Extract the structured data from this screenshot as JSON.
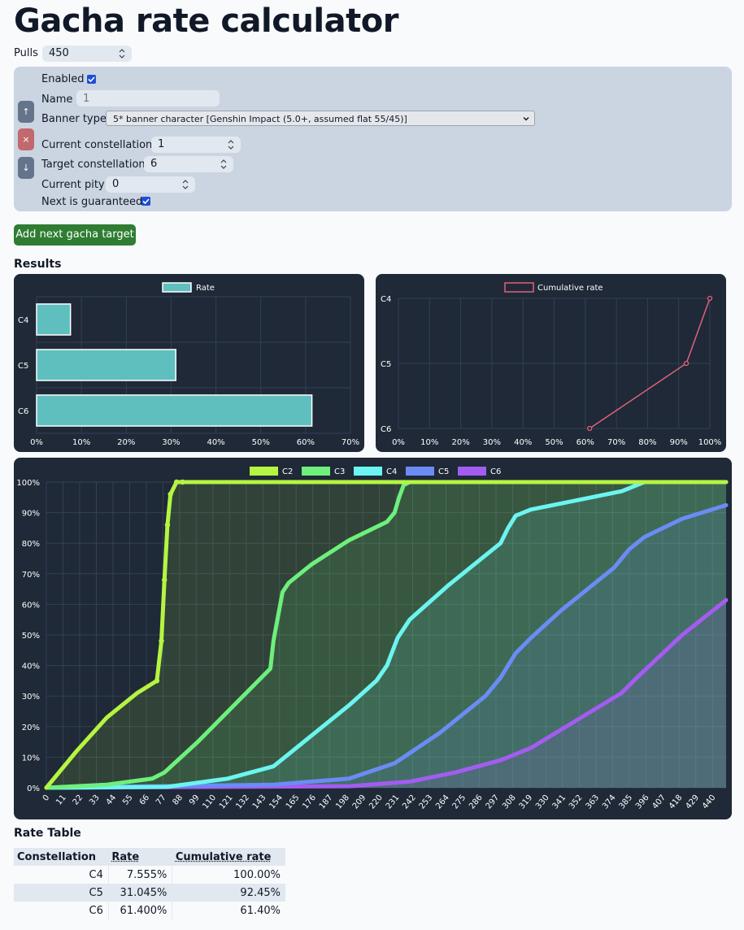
{
  "page_title": "Gacha rate calculator",
  "pulls": {
    "label": "Pulls",
    "value": "450"
  },
  "target": {
    "enabled_label": "Enabled",
    "enabled": true,
    "name_label": "Name",
    "name_placeholder": "1",
    "banner_type_label": "Banner type",
    "banner_type_value": "5* banner character [Genshin Impact (5.0+, assumed flat 55/45)]",
    "current_constellation_label": "Current constellation",
    "current_constellation_value": "1",
    "target_constellation_label": "Target constellation",
    "target_constellation_value": "6",
    "current_pity_label": "Current pity",
    "current_pity_value": "0",
    "guaranteed_label": "Next is guaranteed",
    "guaranteed": true,
    "move_up_icon": "arrow-up-icon",
    "remove_icon": "close-icon",
    "move_down_icon": "arrow-down-icon",
    "move_up_label": "↑",
    "remove_label": "×",
    "move_down_label": "↓"
  },
  "add_button_label": "Add next gacha target",
  "results_heading": "Results",
  "rate_table_heading": "Rate Table",
  "colors": {
    "rate_bar": "#5fbfbf",
    "cumulative_line": "#e0607e",
    "C2": "#b5f542",
    "C3": "#6ef07c",
    "C4": "#6cf5f0",
    "C5": "#6b8cf5",
    "C6": "#a35cf0"
  },
  "chart_data": [
    {
      "type": "bar",
      "orientation": "horizontal",
      "legend": [
        "Rate"
      ],
      "categories": [
        "C4",
        "C5",
        "C6"
      ],
      "values": [
        7.555,
        31.045,
        61.4
      ],
      "xlim": [
        0,
        70
      ],
      "xticks": [
        "0%",
        "10%",
        "20%",
        "30%",
        "40%",
        "50%",
        "60%",
        "70%"
      ],
      "grid": true,
      "legend_position": "top"
    },
    {
      "type": "line",
      "legend": [
        "Cumulative rate"
      ],
      "categories": [
        "C4",
        "C5",
        "C6"
      ],
      "values": [
        100.0,
        92.45,
        61.4
      ],
      "xlim": [
        0,
        100
      ],
      "xticks": [
        "0%",
        "10%",
        "20%",
        "30%",
        "40%",
        "50%",
        "60%",
        "70%",
        "80%",
        "90%",
        "100%"
      ],
      "grid": true,
      "legend_position": "top"
    },
    {
      "type": "area",
      "legend": [
        "C2",
        "C3",
        "C4",
        "C5",
        "C6"
      ],
      "xlim": [
        0,
        449
      ],
      "ylim": [
        0,
        100
      ],
      "yticks": [
        "0%",
        "10%",
        "20%",
        "30%",
        "40%",
        "50%",
        "60%",
        "70%",
        "80%",
        "90%",
        "100%"
      ],
      "xticks": [
        "0",
        "11",
        "22",
        "33",
        "44",
        "55",
        "66",
        "77",
        "88",
        "99",
        "110",
        "121",
        "132",
        "143",
        "154",
        "165",
        "176",
        "187",
        "198",
        "209",
        "220",
        "231",
        "242",
        "253",
        "264",
        "275",
        "286",
        "297",
        "308",
        "319",
        "330",
        "341",
        "352",
        "363",
        "374",
        "385",
        "396",
        "407",
        "418",
        "429",
        "440"
      ],
      "series": [
        {
          "name": "C2",
          "x": [
            0,
            20,
            40,
            60,
            73,
            76,
            78,
            80,
            82,
            86,
            90,
            449
          ],
          "y": [
            0,
            12,
            23,
            31,
            35,
            48,
            68,
            86,
            96,
            100,
            100,
            100
          ]
        },
        {
          "name": "C3",
          "x": [
            0,
            40,
            70,
            78,
            100,
            120,
            140,
            148,
            150,
            153,
            156,
            160,
            175,
            200,
            225,
            230,
            233,
            236,
            240,
            449
          ],
          "y": [
            0,
            1,
            3,
            5,
            15,
            25,
            35,
            39,
            48,
            56,
            64,
            67,
            73,
            81,
            87,
            90,
            95,
            99,
            100,
            100
          ]
        },
        {
          "name": "C4",
          "x": [
            0,
            80,
            120,
            150,
            160,
            180,
            200,
            218,
            225,
            232,
            240,
            265,
            290,
            300,
            305,
            310,
            320,
            350,
            380,
            395,
            449
          ],
          "y": [
            0,
            0.3,
            3,
            7,
            11,
            19,
            27,
            35,
            40,
            49,
            55,
            66,
            76,
            80,
            85,
            89,
            91,
            94,
            97,
            100,
            100
          ]
        },
        {
          "name": "C5",
          "x": [
            0,
            150,
            200,
            230,
            260,
            290,
            300,
            310,
            320,
            340,
            360,
            370,
            375,
            380,
            385,
            395,
            420,
            449
          ],
          "y": [
            0,
            1,
            3,
            8,
            18,
            30,
            36,
            44,
            49,
            58,
            66,
            70,
            72,
            75,
            78,
            82,
            88,
            92.45
          ]
        },
        {
          "name": "C6",
          "x": [
            0,
            200,
            240,
            270,
            300,
            320,
            350,
            380,
            390,
            420,
            449
          ],
          "y": [
            0,
            0.5,
            2,
            5,
            9,
            13,
            22,
            31,
            36,
            50,
            61.4
          ]
        }
      ]
    }
  ],
  "rate_table": {
    "headers": [
      "Constellation",
      "Rate",
      "Cumulative rate"
    ],
    "rows": [
      [
        "C4",
        "7.555%",
        "100.00%"
      ],
      [
        "C5",
        "31.045%",
        "92.45%"
      ],
      [
        "C6",
        "61.400%",
        "61.40%"
      ]
    ]
  }
}
